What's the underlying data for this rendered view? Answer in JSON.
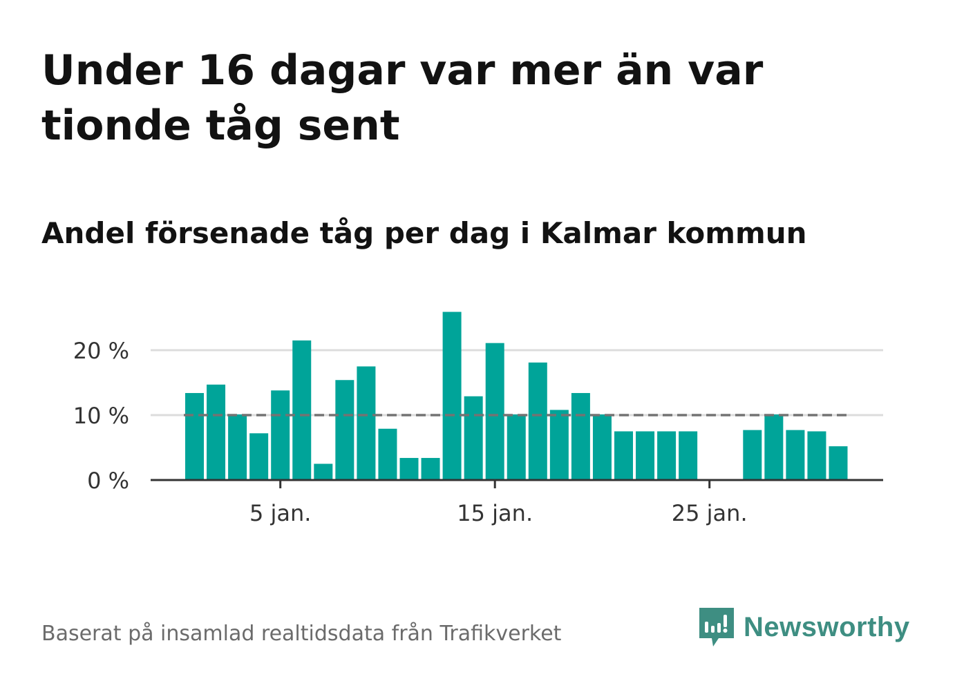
{
  "title": "Under 16 dagar var mer än var tionde tåg sent",
  "subtitle": "Andel försenade tåg per dag i Kalmar kommun",
  "source": "Baserat på insamlad realtidsdata från Trafikverket",
  "brand": {
    "name": "Newsworthy",
    "icon": "newsworthy-logo-icon"
  },
  "colors": {
    "bar": "#00a499",
    "reference": "#737373",
    "grid": "#dcdcdc",
    "axis": "#333333",
    "brand": "#3e8e82"
  },
  "chart_data": {
    "type": "bar",
    "x_label_format": "D jan.",
    "x": [
      1,
      2,
      3,
      4,
      5,
      6,
      7,
      8,
      9,
      10,
      11,
      12,
      13,
      14,
      15,
      16,
      17,
      18,
      19,
      20,
      21,
      22,
      23,
      24,
      25,
      26,
      27,
      28,
      29,
      30,
      31
    ],
    "values": [
      13.4,
      14.7,
      10.1,
      7.2,
      13.8,
      21.5,
      2.5,
      15.4,
      17.5,
      7.9,
      3.4,
      3.4,
      25.9,
      12.9,
      21.1,
      10.1,
      18.1,
      10.8,
      13.4,
      10.1,
      7.5,
      7.5,
      7.5,
      7.5,
      0,
      0,
      7.7,
      10.1,
      7.7,
      7.5,
      5.2
    ],
    "reference_line": {
      "value": 10,
      "style": "dashed"
    },
    "ylim": [
      0,
      27
    ],
    "y_ticks": [
      0,
      10,
      20
    ],
    "y_tick_labels": [
      "0 %",
      "10 %",
      "20 %"
    ],
    "x_ticks": [
      5,
      15,
      25
    ],
    "x_tick_labels": [
      "5 jan.",
      "15 jan.",
      "25 jan."
    ],
    "grid": true,
    "xlabel": "",
    "ylabel": ""
  }
}
